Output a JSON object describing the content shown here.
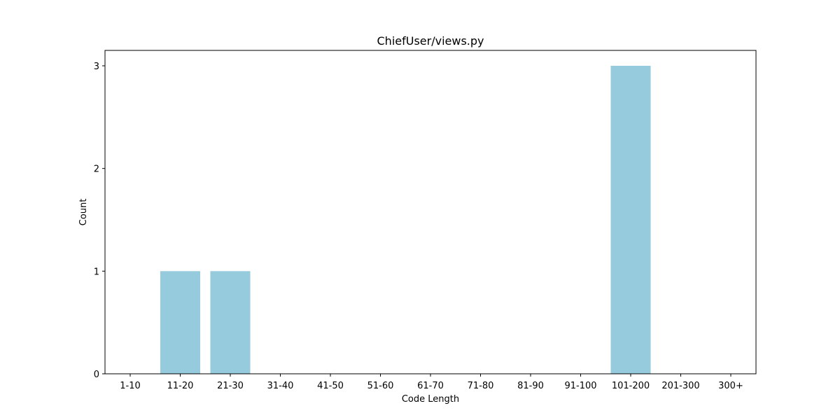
{
  "chart_data": {
    "type": "bar",
    "title": "ChiefUser/views.py",
    "xlabel": "Code Length",
    "ylabel": "Count",
    "categories": [
      "1-10",
      "11-20",
      "21-30",
      "31-40",
      "41-50",
      "51-60",
      "61-70",
      "71-80",
      "81-90",
      "91-100",
      "101-200",
      "201-300",
      "300+"
    ],
    "values": [
      0,
      1,
      1,
      0,
      0,
      0,
      0,
      0,
      0,
      0,
      3,
      0,
      0
    ],
    "ylim": [
      0,
      3.15
    ],
    "yticks": [
      0,
      1,
      2,
      3
    ],
    "grid": false,
    "bar_color": "#96cadd"
  }
}
